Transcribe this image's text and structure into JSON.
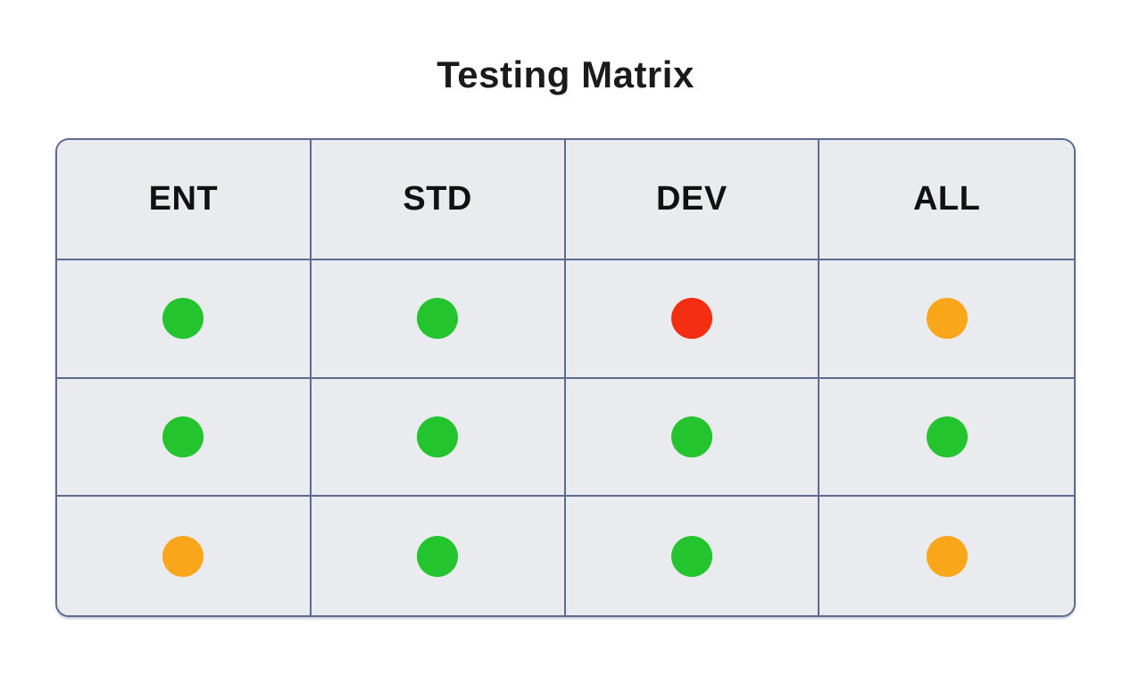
{
  "title": "Testing Matrix",
  "colors": {
    "green": "#23c42d",
    "red": "#f42e12",
    "orange": "#f9a61a",
    "border": "#5c6b8f",
    "cell_bg": "#e9ebef",
    "title_color": "#1b1b1d"
  },
  "table": {
    "columns": [
      "ENT",
      "STD",
      "DEV",
      "ALL"
    ],
    "rows": [
      [
        "green",
        "green",
        "red",
        "orange"
      ],
      [
        "green",
        "green",
        "green",
        "green"
      ],
      [
        "orange",
        "green",
        "green",
        "orange"
      ]
    ]
  }
}
